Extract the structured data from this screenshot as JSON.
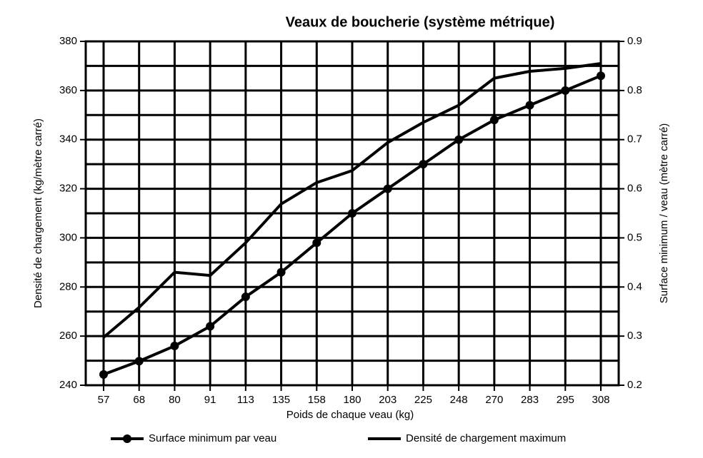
{
  "chart_data": {
    "type": "line",
    "title": "Veaux de boucherie (système métrique)",
    "x_label": "Poids de chaque veau (kg)",
    "y_label": "Densité de chargement (kg/mètre carré)",
    "y2_label": "Surface minimum / veau (mètre carré)",
    "categories": [
      "57",
      "68",
      "80",
      "91",
      "113",
      "135",
      "158",
      "180",
      "203",
      "225",
      "248",
      "270",
      "283",
      "295",
      "308"
    ],
    "ylim": [
      240,
      380
    ],
    "yticks": [
      240,
      260,
      280,
      300,
      320,
      340,
      360,
      380
    ],
    "y2lim": [
      0.2,
      0.9
    ],
    "y2ticks": [
      0.2,
      0.3,
      0.4,
      0.5,
      0.6,
      0.7,
      0.8,
      0.9
    ],
    "grid": true,
    "series": [
      {
        "name": "Surface minimum par veau",
        "color": "#000000",
        "axis": "y2",
        "markers": true,
        "values": [
          0.222,
          0.249,
          0.28,
          0.32,
          0.38,
          0.43,
          0.49,
          0.55,
          0.6,
          0.65,
          0.7,
          0.74,
          0.77,
          0.8,
          0.83
        ]
      },
      {
        "name": "Densité de chargement maximum",
        "color": "#000000",
        "markers": false,
        "values": [
          259.5,
          271.7,
          286,
          284.7,
          298,
          313.8,
          322.5,
          327.4,
          338.8,
          347,
          354,
          365,
          367.8,
          369,
          371
        ]
      }
    ]
  }
}
